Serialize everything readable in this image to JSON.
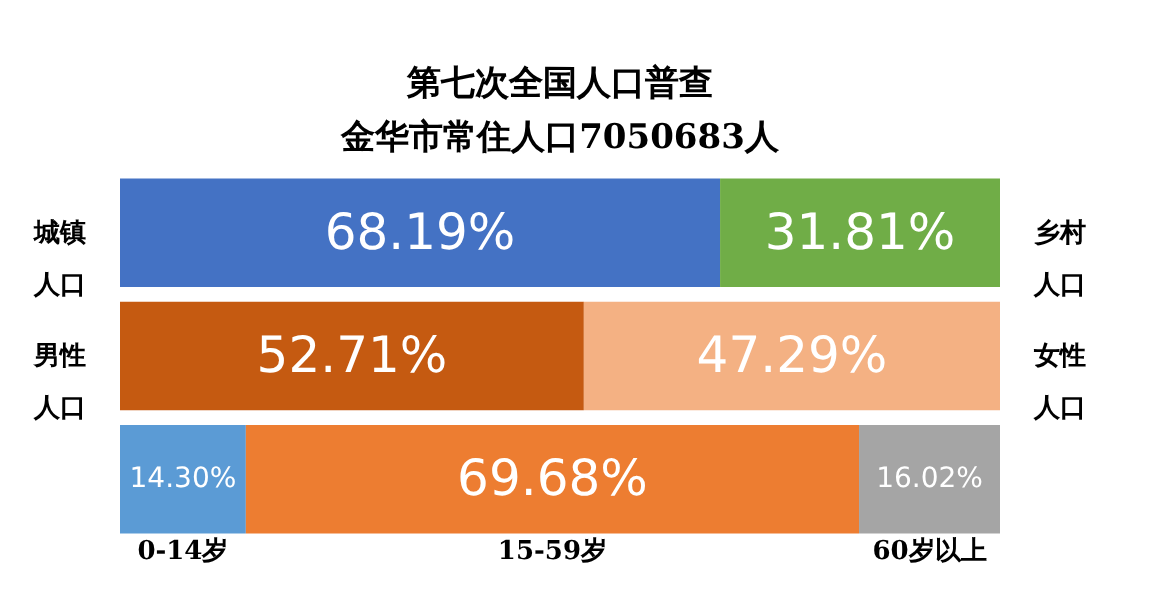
{
  "chart_data": {
    "type": "bar",
    "orientation": "horizontal",
    "stacked": true,
    "title": "第七次全国人口普查",
    "subtitle": "金华市常住人口7050683人",
    "categories": [
      null,
      null,
      null
    ],
    "legend": false,
    "series": [
      {
        "name": "城镇人口",
        "color": "#4472c4",
        "values": [
          68.19,
          null,
          null
        ],
        "value_labels": [
          "68.19%",
          null,
          null
        ]
      },
      {
        "name": "乡村人口",
        "color": "#70ad47",
        "values": [
          31.81,
          null,
          null
        ],
        "value_labels": [
          "31.81%",
          null,
          null
        ]
      },
      {
        "name": "男性人口",
        "color": "#c55a11",
        "values": [
          null,
          52.71,
          null
        ],
        "value_labels": [
          null,
          "52.71%",
          null
        ]
      },
      {
        "name": "女性人口",
        "color": "#f4b183",
        "values": [
          null,
          47.29,
          null
        ],
        "value_labels": [
          null,
          "47.29%",
          null
        ]
      },
      {
        "name": "0-14岁",
        "color": "#5b9bd5",
        "values": [
          null,
          null,
          14.3
        ],
        "value_labels": [
          null,
          null,
          "14.30%"
        ]
      },
      {
        "name": "15-59岁",
        "color": "#ed7d31",
        "values": [
          null,
          null,
          69.68
        ],
        "value_labels": [
          null,
          null,
          "69.68%"
        ]
      },
      {
        "name": "60岁以上",
        "color": "#a5a5a5",
        "values": [
          null,
          null,
          16.02
        ],
        "value_labels": [
          null,
          null,
          "16.02%"
        ]
      }
    ]
  }
}
